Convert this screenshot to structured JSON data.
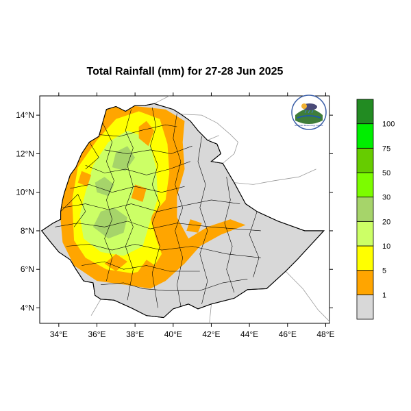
{
  "title": "Total Rainfall (mm) for 27-28 Jun 2025",
  "map": {
    "lon_range": [
      33,
      48.2
    ],
    "lat_range": [
      3.2,
      15
    ],
    "x_ticks": [
      {
        "lon": 34,
        "label": "34°E"
      },
      {
        "lon": 36,
        "label": "36°E"
      },
      {
        "lon": 38,
        "label": "38°E"
      },
      {
        "lon": 40,
        "label": "40°E"
      },
      {
        "lon": 42,
        "label": "42°E"
      },
      {
        "lon": 44,
        "label": "44°E"
      },
      {
        "lon": 46,
        "label": "46°E"
      },
      {
        "lon": 48,
        "label": "48°E"
      }
    ],
    "y_ticks": [
      {
        "lat": 14,
        "label": "14°N"
      },
      {
        "lat": 12,
        "label": "12°N"
      },
      {
        "lat": 10,
        "label": "10°N"
      },
      {
        "lat": 8,
        "label": "8°N"
      },
      {
        "lat": 6,
        "label": "6°N"
      },
      {
        "lat": 4,
        "label": "4°N"
      }
    ],
    "colors": {
      "land": "#d8d8d8",
      "lt1": "#d8d8d8",
      "1-5": "#ffa500",
      "5-10": "#ffff00",
      "10-20": "#ccff66",
      "20-30": "#a6d46a",
      "30-50": "#7cfc00",
      "50-75": "#66cc00",
      "75-100": "#00ee00",
      "gt100": "#228b22"
    }
  },
  "legend": {
    "colors": [
      "#d8d8d8",
      "#ffa500",
      "#ffff00",
      "#ccff66",
      "#a6d46a",
      "#7cfc00",
      "#66cc00",
      "#00ee00",
      "#228b22"
    ],
    "labels": [
      "1",
      "5",
      "10",
      "20",
      "30",
      "50",
      "75",
      "100"
    ]
  },
  "logo": {
    "name": "ethiopian-meteorology-institute-logo",
    "text": "Ethiopian Meteorology Institute"
  }
}
